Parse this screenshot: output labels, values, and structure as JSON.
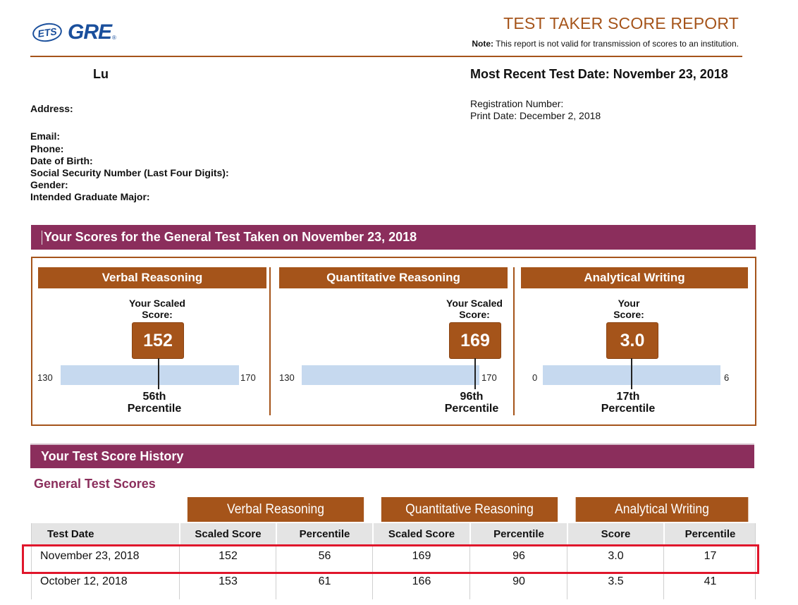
{
  "logo": {
    "ets": "ETS",
    "gre": "GRE",
    "reg": "®"
  },
  "header": {
    "title": "TEST TAKER SCORE REPORT",
    "note_label": "Note:",
    "note_text": " This report is not valid for transmission of scores to an institution."
  },
  "candidate": {
    "name": "Lu",
    "most_recent": "Most Recent Test Date: November 23, 2018",
    "registration": "Registration Number:",
    "print_date": "Print Date: December 2, 2018",
    "address_label": "Address:",
    "fields": [
      "Email:",
      "Phone:",
      "Date of Birth:",
      "Social Security Number (Last Four Digits):",
      "Gender:",
      "Intended Graduate Major:"
    ]
  },
  "scores_band": "Your Scores for the General Test Taken on November 23, 2018",
  "sections": [
    {
      "title": "Verbal Reasoning",
      "label1": "Your Scaled",
      "label2": "Score:",
      "score": "152",
      "min": "130",
      "max": "170",
      "percentile": "56th",
      "percentile_label": "Percentile",
      "fraction": 0.55
    },
    {
      "title": "Quantitative Reasoning",
      "label1": "Your Scaled",
      "label2": "Score:",
      "score": "169",
      "min": "130",
      "max": "170",
      "percentile": "96th",
      "percentile_label": "Percentile",
      "fraction": 0.975
    },
    {
      "title": "Analytical Writing",
      "label1": "Your",
      "label2": "Score:",
      "score": "3.0",
      "min": "0",
      "max": "6",
      "percentile": "17th",
      "percentile_label": "Percentile",
      "fraction": 0.5
    }
  ],
  "history_band": "Your Test Score History",
  "history": {
    "subtitle": "General Test Scores",
    "groups": [
      "Verbal Reasoning",
      "Quantitative Reasoning",
      "Analytical Writing"
    ],
    "columns": [
      "Test Date",
      "Scaled Score",
      "Percentile",
      "Scaled Score",
      "Percentile",
      "Score",
      "Percentile"
    ],
    "rows": [
      [
        "November 23, 2018",
        "152",
        "56",
        "169",
        "96",
        "3.0",
        "17"
      ],
      [
        "October 12, 2018",
        "153",
        "61",
        "166",
        "90",
        "3.5",
        "41"
      ]
    ]
  },
  "colors": {
    "brand_orange": "#a5541a",
    "band_purple": "#8b2e5c",
    "bar_blue": "#c6d9ef",
    "highlight_red": "#e0162b"
  }
}
